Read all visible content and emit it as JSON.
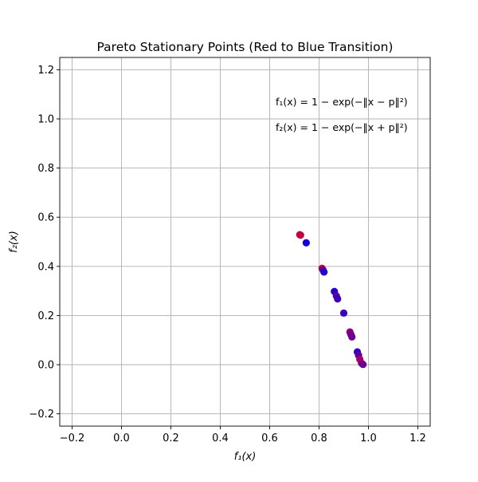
{
  "chart_data": {
    "type": "scatter",
    "title": "Pareto Stationary Points (Red to Blue Transition)",
    "xlabel": "f₁(x)",
    "ylabel": "f₂(x)",
    "xlim": [
      -0.25,
      1.25
    ],
    "ylim": [
      -0.25,
      1.25
    ],
    "xticks": [
      -0.2,
      0.0,
      0.2,
      0.4,
      0.6,
      0.8,
      1.0,
      1.2
    ],
    "yticks": [
      -0.2,
      0.0,
      0.2,
      0.4,
      0.6,
      0.8,
      1.0,
      1.2
    ],
    "xtick_labels": [
      "−0.2",
      "0.0",
      "0.2",
      "0.4",
      "0.6",
      "0.8",
      "1.0",
      "1.2"
    ],
    "ytick_labels": [
      "−0.2",
      "0.0",
      "0.2",
      "0.4",
      "0.6",
      "0.8",
      "1.0",
      "1.2"
    ],
    "grid": true,
    "annotations": [
      "f₁(x) = 1 − exp(−‖x − p‖²)",
      "f₂(x) = 1 − exp(−‖x + p‖²)"
    ],
    "points": [
      {
        "x": 0.725,
        "y": 0.527,
        "color": "#c8003a"
      },
      {
        "x": 0.722,
        "y": 0.529,
        "color": "#c00042"
      },
      {
        "x": 0.748,
        "y": 0.496,
        "color": "#1400d2"
      },
      {
        "x": 0.812,
        "y": 0.392,
        "color": "#c40040"
      },
      {
        "x": 0.816,
        "y": 0.385,
        "color": "#5a00a0"
      },
      {
        "x": 0.82,
        "y": 0.377,
        "color": "#2c00c8"
      },
      {
        "x": 0.862,
        "y": 0.298,
        "color": "#2a00c8"
      },
      {
        "x": 0.87,
        "y": 0.28,
        "color": "#5800a4"
      },
      {
        "x": 0.875,
        "y": 0.268,
        "color": "#3c00b8"
      },
      {
        "x": 0.9,
        "y": 0.21,
        "color": "#3a00ba"
      },
      {
        "x": 0.925,
        "y": 0.133,
        "color": "#8a0078"
      },
      {
        "x": 0.929,
        "y": 0.123,
        "color": "#7a0086"
      },
      {
        "x": 0.933,
        "y": 0.113,
        "color": "#6c0092"
      },
      {
        "x": 0.955,
        "y": 0.052,
        "color": "#3200c2"
      },
      {
        "x": 0.96,
        "y": 0.038,
        "color": "#5a00a2"
      },
      {
        "x": 0.965,
        "y": 0.022,
        "color": "#a80062"
      },
      {
        "x": 0.972,
        "y": 0.006,
        "color": "#8c0076"
      },
      {
        "x": 0.978,
        "y": 0.001,
        "color": "#6a0094"
      }
    ]
  }
}
